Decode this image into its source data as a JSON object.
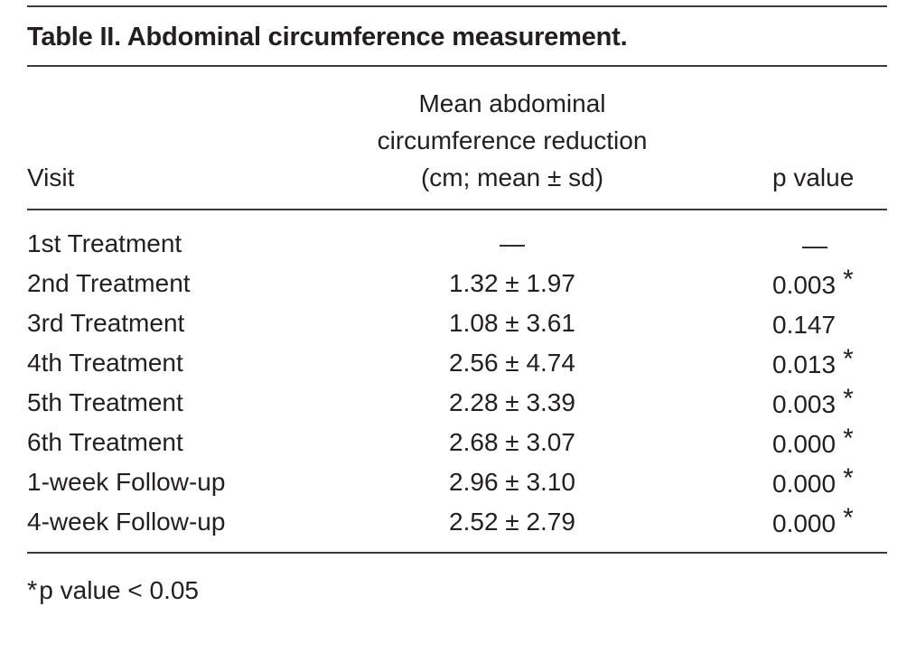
{
  "title": "Table II. Abdominal circumference measurement.",
  "table": {
    "columns": {
      "visit": "Visit",
      "mean": [
        "Mean abdominal",
        "circumference reduction",
        "(cm; mean ± sd)"
      ],
      "p": "p value"
    },
    "rows": [
      {
        "visit": "1st Treatment",
        "mean": "—",
        "p": "—",
        "star": ""
      },
      {
        "visit": "2nd Treatment",
        "mean": "1.32 ± 1.97",
        "p": "0.003",
        "star": "*"
      },
      {
        "visit": "3rd Treatment",
        "mean": "1.08 ± 3.61",
        "p": "0.147",
        "star": ""
      },
      {
        "visit": "4th Treatment",
        "mean": "2.56 ± 4.74",
        "p": "0.013",
        "star": "*"
      },
      {
        "visit": "5th Treatment",
        "mean": "2.28 ± 3.39",
        "p": "0.003",
        "star": "*"
      },
      {
        "visit": "6th Treatment",
        "mean": "2.68 ± 3.07",
        "p": "0.000",
        "star": "*"
      },
      {
        "visit": "1-week Follow-up",
        "mean": "2.96 ± 3.10",
        "p": "0.000",
        "star": "*"
      },
      {
        "visit": "4-week Follow-up",
        "mean": "2.52 ± 2.79",
        "p": "0.000",
        "star": "*"
      }
    ]
  },
  "footnote": {
    "marker": "*",
    "text": "p value < 0.05"
  },
  "colors": {
    "text": "#231f20",
    "rule": "#3a3a3a",
    "background": "#ffffff"
  }
}
